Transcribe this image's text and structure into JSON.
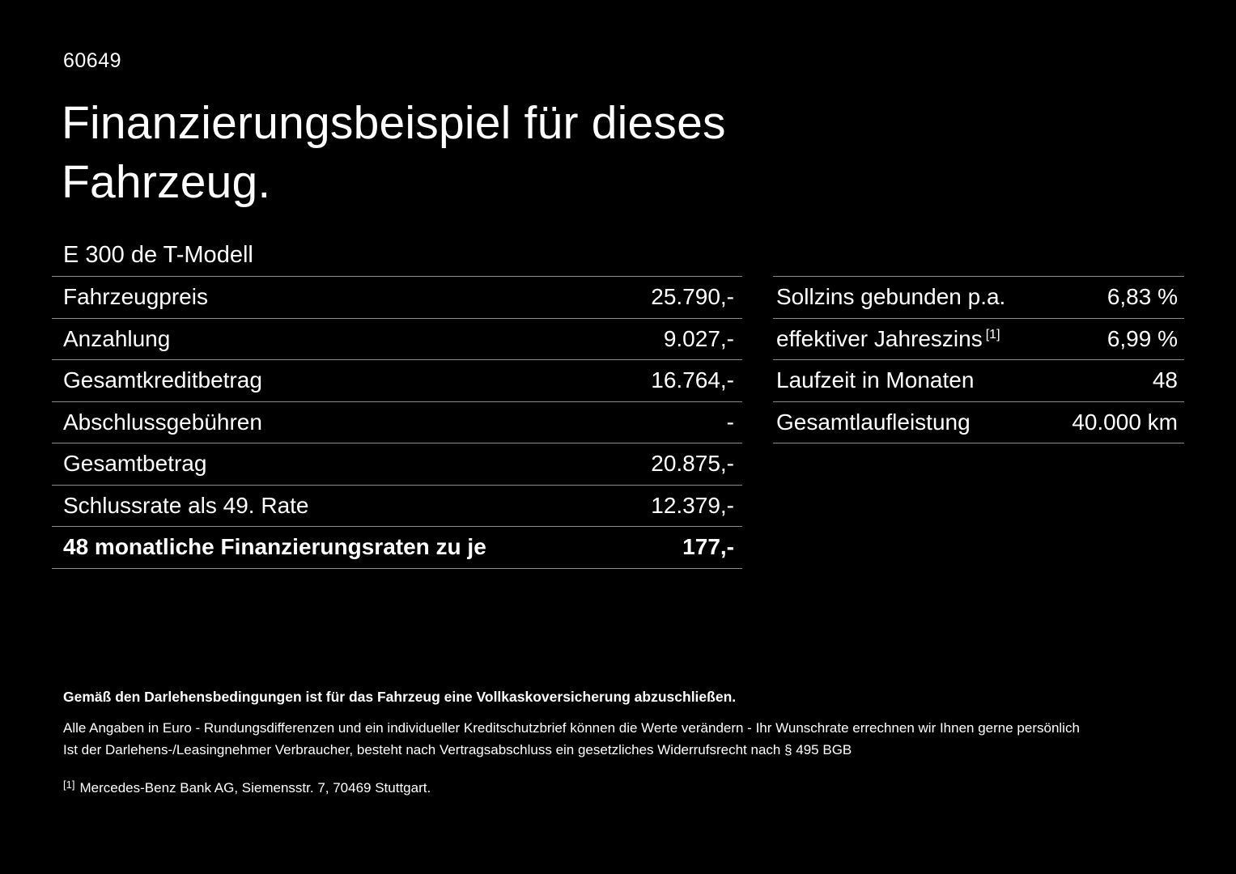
{
  "page": {
    "vehicle_id": "60649",
    "title": "Finanzierungsbeispiel für dieses Fahrzeug.",
    "model": "E 300 de T-Modell"
  },
  "colors": {
    "background": "#000000",
    "text": "#ffffff",
    "separator_line": "#8c8c8c"
  },
  "left_table": {
    "rows": [
      {
        "label": "Fahrzeugpreis",
        "value": "25.790,-"
      },
      {
        "label": "Anzahlung",
        "value": "9.027,-"
      },
      {
        "label": "Gesamtkreditbetrag",
        "value": "16.764,-"
      },
      {
        "label": "Abschlussgebühren",
        "value": "-"
      },
      {
        "label": "Gesamtbetrag",
        "value": "20.875,-"
      },
      {
        "label": "Schlussrate als 49. Rate",
        "value": "12.379,-"
      },
      {
        "label": "48 monatliche Finanzierungsraten zu je",
        "value": "177,-"
      }
    ]
  },
  "right_table": {
    "rows": [
      {
        "label": "Sollzins gebunden p.a.",
        "sup": "",
        "value": "6,83 %"
      },
      {
        "label": "effektiver Jahreszins",
        "sup": "[1]",
        "value": "6,99 %"
      },
      {
        "label": "Laufzeit in Monaten",
        "sup": "",
        "value": "48"
      },
      {
        "label": "Gesamtlaufleistung",
        "sup": "",
        "value": "40.000 km"
      }
    ]
  },
  "footnotes": {
    "insurance_note": "Gemäß den Darlehensbedingungen ist für das Fahrzeug eine Vollkaskoversicherung abzuschließen.",
    "disclaimer_line1": "Alle Angaben in Euro - Rundungsdifferenzen und ein individueller Kreditschutzbrief können die Werte verändern - Ihr Wunschrate errechnen wir Ihnen gerne persönlich",
    "disclaimer_line2": "Ist der Darlehens-/Leasingnehmer Verbraucher, besteht nach Vertragsabschluss ein gesetzliches Widerrufsrecht nach § 495 BGB",
    "source_marker": "[1]",
    "source_text": "Mercedes-Benz Bank AG, Siemensstr. 7, 70469 Stuttgart."
  }
}
